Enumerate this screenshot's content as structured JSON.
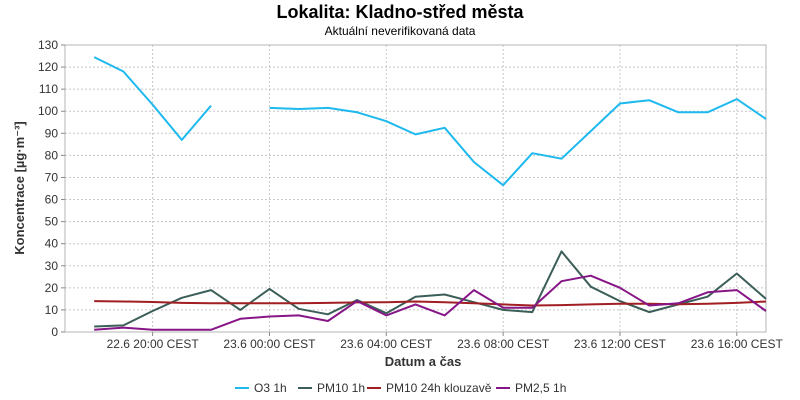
{
  "chart_data": {
    "type": "line",
    "title": "Lokalita: Kladno-střed města",
    "subtitle": "Aktuální neverifikovaná data",
    "xlabel": "Datum a čas",
    "ylabel": "Koncentrace [µg·m⁻³]",
    "ylim": [
      0,
      130
    ],
    "yticks": [
      0,
      10,
      20,
      30,
      40,
      50,
      60,
      70,
      80,
      90,
      100,
      110,
      120,
      130
    ],
    "xlim": [
      "2023-06-22 17:00",
      "2023-06-23 17:00"
    ],
    "xticks": [
      {
        "t": "2023-06-22 20:00",
        "label": "22.6 20:00 CEST"
      },
      {
        "t": "2023-06-23 00:00",
        "label": "23.6 00:00 CEST"
      },
      {
        "t": "2023-06-23 04:00",
        "label": "23.6 04:00 CEST"
      },
      {
        "t": "2023-06-23 08:00",
        "label": "23.6 08:00 CEST"
      },
      {
        "t": "2023-06-23 12:00",
        "label": "23.6 12:00 CEST"
      },
      {
        "t": "2023-06-23 16:00",
        "label": "23.6 16:00 CEST"
      }
    ],
    "x": [
      "2023-06-22 18:00",
      "2023-06-22 19:00",
      "2023-06-22 20:00",
      "2023-06-22 21:00",
      "2023-06-22 22:00",
      "2023-06-22 23:00",
      "2023-06-23 00:00",
      "2023-06-23 01:00",
      "2023-06-23 02:00",
      "2023-06-23 03:00",
      "2023-06-23 04:00",
      "2023-06-23 05:00",
      "2023-06-23 06:00",
      "2023-06-23 07:00",
      "2023-06-23 08:00",
      "2023-06-23 09:00",
      "2023-06-23 10:00",
      "2023-06-23 11:00",
      "2023-06-23 12:00",
      "2023-06-23 13:00",
      "2023-06-23 14:00",
      "2023-06-23 15:00",
      "2023-06-23 16:00",
      "2023-06-23 17:00"
    ],
    "series": [
      {
        "name": "O3 1h",
        "color": "#1eb9ee",
        "values": [
          124.5,
          118,
          103,
          87,
          102.5,
          null,
          101.5,
          101,
          101.5,
          99.5,
          95.5,
          89.5,
          92.5,
          77,
          66.5,
          81,
          78.5,
          91,
          103.5,
          105,
          99.5,
          99.5,
          105.5,
          96.5
        ]
      },
      {
        "name": "PM10 1h",
        "color": "#3b5e58",
        "values": [
          2.5,
          3,
          9.5,
          15.5,
          19,
          10,
          19.5,
          10.5,
          8,
          14.5,
          8.5,
          16,
          17,
          13.5,
          10,
          9,
          36.5,
          20.5,
          14,
          9,
          12.5,
          16,
          26.5,
          15
        ]
      },
      {
        "name": "PM10 24h klouzavě",
        "color": "#a11e22",
        "values": [
          14,
          13.8,
          13.6,
          13.2,
          13,
          13,
          13,
          13,
          13.2,
          13.4,
          13.5,
          13.8,
          13.5,
          13,
          12.5,
          12,
          12.2,
          12.5,
          12.8,
          12.8,
          12.6,
          12.8,
          13.2,
          13.8
        ]
      },
      {
        "name": "PM2,5 1h",
        "color": "#871687",
        "values": [
          1,
          2,
          1,
          1,
          1,
          6,
          7,
          7.5,
          5,
          14,
          7.5,
          12.5,
          7.5,
          19,
          11,
          11,
          23,
          25.5,
          20,
          12,
          13,
          18,
          19,
          9.5
        ]
      }
    ],
    "grid": true,
    "legend_position": "bottom"
  }
}
